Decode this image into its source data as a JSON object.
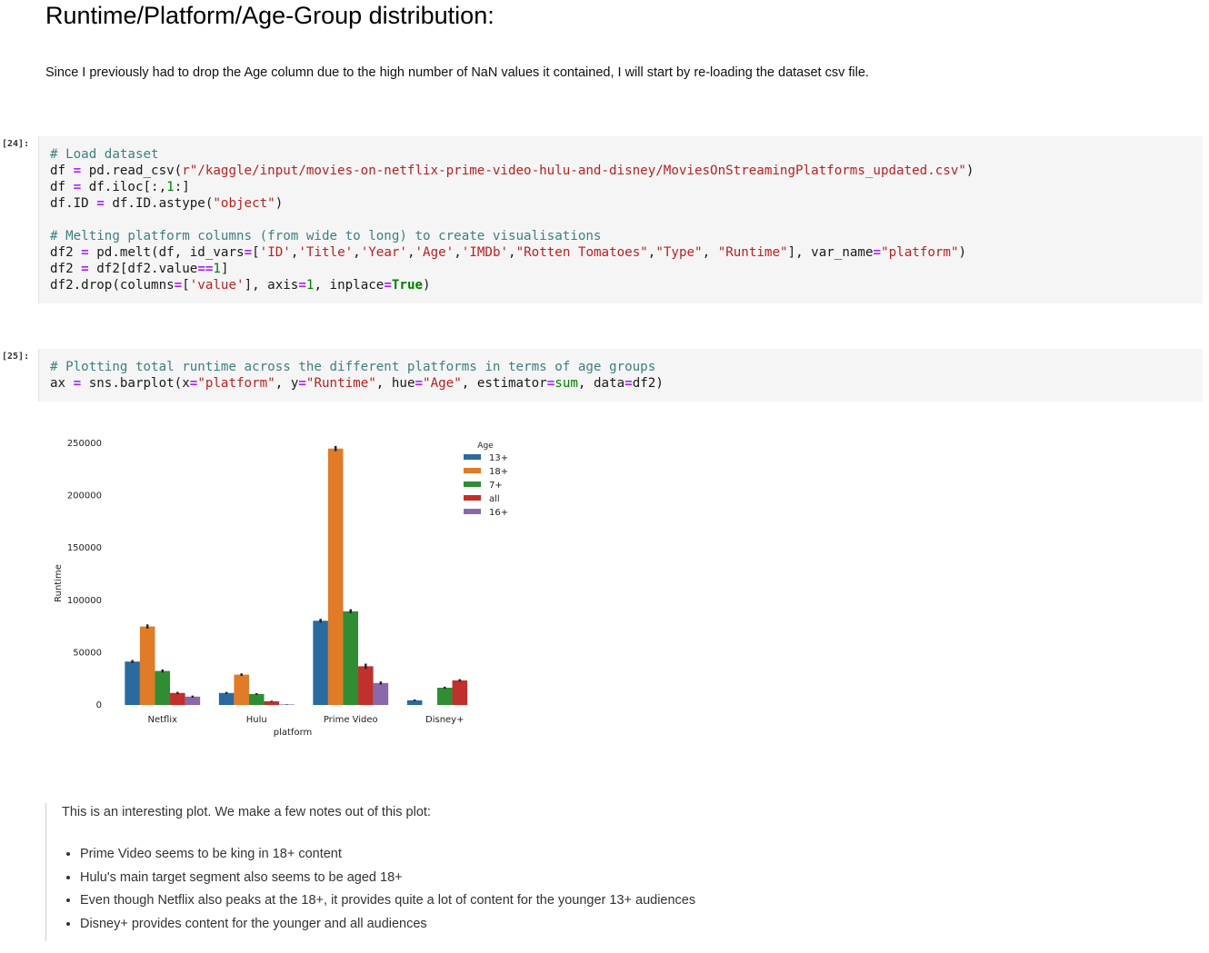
{
  "heading": "Runtime/Platform/Age-Group distribution:",
  "intro": "Since I previously had to drop the Age column due to the high number of NaN values it contained, I will start by re-loading the dataset csv file.",
  "cells": [
    {
      "prompt": "[24]:",
      "lines": [
        [
          {
            "t": "c",
            "v": "# Load dataset"
          }
        ],
        [
          {
            "t": "p",
            "v": "df "
          },
          {
            "t": "o",
            "v": "="
          },
          {
            "t": "p",
            "v": " pd.read_csv("
          },
          {
            "t": "s",
            "v": "r\"/kaggle/input/movies-on-netflix-prime-video-hulu-and-disney/MoviesOnStreamingPlatforms_updated.csv\""
          },
          {
            "t": "p",
            "v": ")"
          }
        ],
        [
          {
            "t": "p",
            "v": "df "
          },
          {
            "t": "o",
            "v": "="
          },
          {
            "t": "p",
            "v": " df.iloc[:,"
          },
          {
            "t": "n",
            "v": "1"
          },
          {
            "t": "p",
            "v": ":]"
          }
        ],
        [
          {
            "t": "p",
            "v": "df.ID "
          },
          {
            "t": "o",
            "v": "="
          },
          {
            "t": "p",
            "v": " df.ID.astype("
          },
          {
            "t": "s",
            "v": "\"object\""
          },
          {
            "t": "p",
            "v": ")"
          }
        ],
        [],
        [
          {
            "t": "c",
            "v": "# Melting platform columns (from wide to long) to create visualisations"
          }
        ],
        [
          {
            "t": "p",
            "v": "df2 "
          },
          {
            "t": "o",
            "v": "="
          },
          {
            "t": "p",
            "v": " pd.melt(df, id_vars"
          },
          {
            "t": "o",
            "v": "="
          },
          {
            "t": "p",
            "v": "["
          },
          {
            "t": "s",
            "v": "'ID'"
          },
          {
            "t": "p",
            "v": ","
          },
          {
            "t": "s",
            "v": "'Title'"
          },
          {
            "t": "p",
            "v": ","
          },
          {
            "t": "s",
            "v": "'Year'"
          },
          {
            "t": "p",
            "v": ","
          },
          {
            "t": "s",
            "v": "'Age'"
          },
          {
            "t": "p",
            "v": ","
          },
          {
            "t": "s",
            "v": "'IMDb'"
          },
          {
            "t": "p",
            "v": ","
          },
          {
            "t": "s",
            "v": "\"Rotten Tomatoes\""
          },
          {
            "t": "p",
            "v": ","
          },
          {
            "t": "s",
            "v": "\"Type\""
          },
          {
            "t": "p",
            "v": ", "
          },
          {
            "t": "s",
            "v": "\"Runtime\""
          },
          {
            "t": "p",
            "v": "], var_name"
          },
          {
            "t": "o",
            "v": "="
          },
          {
            "t": "s",
            "v": "\"platform\""
          },
          {
            "t": "p",
            "v": ")"
          }
        ],
        [
          {
            "t": "p",
            "v": "df2 "
          },
          {
            "t": "o",
            "v": "="
          },
          {
            "t": "p",
            "v": " df2[df2.value"
          },
          {
            "t": "o",
            "v": "=="
          },
          {
            "t": "n",
            "v": "1"
          },
          {
            "t": "p",
            "v": "]"
          }
        ],
        [
          {
            "t": "p",
            "v": "df2.drop(columns"
          },
          {
            "t": "o",
            "v": "="
          },
          {
            "t": "p",
            "v": "["
          },
          {
            "t": "s",
            "v": "'value'"
          },
          {
            "t": "p",
            "v": "], axis"
          },
          {
            "t": "o",
            "v": "="
          },
          {
            "t": "n",
            "v": "1"
          },
          {
            "t": "p",
            "v": ", inplace"
          },
          {
            "t": "o",
            "v": "="
          },
          {
            "t": "k",
            "v": "True"
          },
          {
            "t": "p",
            "v": ")"
          }
        ]
      ]
    },
    {
      "prompt": "[25]:",
      "lines": [
        [
          {
            "t": "c",
            "v": "# Plotting total runtime across the different platforms in terms of age groups"
          }
        ],
        [
          {
            "t": "p",
            "v": "ax "
          },
          {
            "t": "o",
            "v": "="
          },
          {
            "t": "p",
            "v": " sns.barplot(x"
          },
          {
            "t": "o",
            "v": "="
          },
          {
            "t": "s",
            "v": "\"platform\""
          },
          {
            "t": "p",
            "v": ", y"
          },
          {
            "t": "o",
            "v": "="
          },
          {
            "t": "s",
            "v": "\"Runtime\""
          },
          {
            "t": "p",
            "v": ", hue"
          },
          {
            "t": "o",
            "v": "="
          },
          {
            "t": "s",
            "v": "\"Age\""
          },
          {
            "t": "p",
            "v": ", estimator"
          },
          {
            "t": "o",
            "v": "="
          },
          {
            "t": "n",
            "v": "sum"
          },
          {
            "t": "p",
            "v": ", data"
          },
          {
            "t": "o",
            "v": "="
          },
          {
            "t": "p",
            "v": "df2)"
          }
        ]
      ]
    }
  ],
  "chart_data": {
    "type": "bar",
    "xlabel": "platform",
    "ylabel": "Runtime",
    "categories": [
      "Netflix",
      "Hulu",
      "Prime Video",
      "Disney+"
    ],
    "ylim": [
      0,
      250000
    ],
    "yticks": [
      "0",
      "50000",
      "100000",
      "150000",
      "200000",
      "250000"
    ],
    "legend_title": "Age",
    "legend_position": "top-right",
    "series": [
      {
        "name": "13+",
        "color": "#2b6a9e",
        "values": [
          41500,
          11500,
          80500,
          4500
        ],
        "errors": [
          1500,
          1000,
          1800,
          800
        ]
      },
      {
        "name": "18+",
        "color": "#e07b27",
        "values": [
          75000,
          29000,
          245000,
          null
        ],
        "errors": [
          2000,
          1200,
          2500,
          null
        ]
      },
      {
        "name": "7+",
        "color": "#318d34",
        "values": [
          32500,
          10500,
          89500,
          16500
        ],
        "errors": [
          1500,
          800,
          2000,
          1000
        ]
      },
      {
        "name": "all",
        "color": "#c0302d",
        "values": [
          11500,
          3500,
          37000,
          23500
        ],
        "errors": [
          1000,
          600,
          2500,
          1200
        ]
      },
      {
        "name": "16+",
        "color": "#8a68a9",
        "values": [
          8000,
          500,
          21000,
          null
        ],
        "errors": [
          1000,
          200,
          1500,
          null
        ]
      }
    ]
  },
  "notes": {
    "intro": "This is an interesting plot. We make a few notes out of this plot:",
    "bullets": [
      "Prime Video seems to be king in 18+ content",
      "Hulu's main target segment also seems to be aged 18+",
      "Even though Netflix also peaks at the 18+, it provides quite a lot of content for the younger 13+ audiences",
      "Disney+ provides content for the younger and all audiences"
    ]
  }
}
